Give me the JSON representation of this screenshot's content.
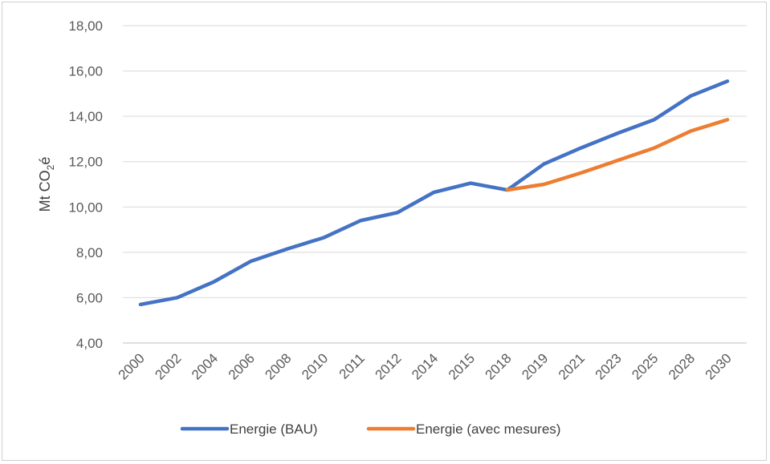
{
  "chart_data": {
    "type": "line",
    "title": "",
    "xlabel": "",
    "ylabel_main": "Mt CO",
    "ylabel_sub": "2",
    "ylabel_tail": "é",
    "categories": [
      "2000",
      "2002",
      "2004",
      "2006",
      "2008",
      "2010",
      "2011",
      "2012",
      "2014",
      "2015",
      "2018",
      "2019",
      "2021",
      "2023",
      "2025",
      "2028",
      "2030"
    ],
    "yticks": [
      "4,00",
      "6,00",
      "8,00",
      "10,00",
      "12,00",
      "14,00",
      "16,00",
      "18,00"
    ],
    "ylim": [
      4,
      18
    ],
    "grid": true,
    "legend_position": "bottom",
    "series": [
      {
        "name": "Energie (BAU)",
        "color": "#4472C4",
        "values": [
          5.7,
          6.0,
          6.7,
          7.6,
          8.15,
          8.65,
          9.4,
          9.75,
          10.65,
          11.05,
          10.75,
          11.9,
          12.6,
          13.25,
          13.85,
          14.9,
          15.55
        ]
      },
      {
        "name": "Energie (avec mesures)",
        "color": "#ED7D31",
        "values": [
          null,
          null,
          null,
          null,
          null,
          null,
          null,
          null,
          null,
          null,
          10.75,
          11.0,
          11.5,
          12.05,
          12.6,
          13.35,
          13.85
        ]
      }
    ]
  }
}
